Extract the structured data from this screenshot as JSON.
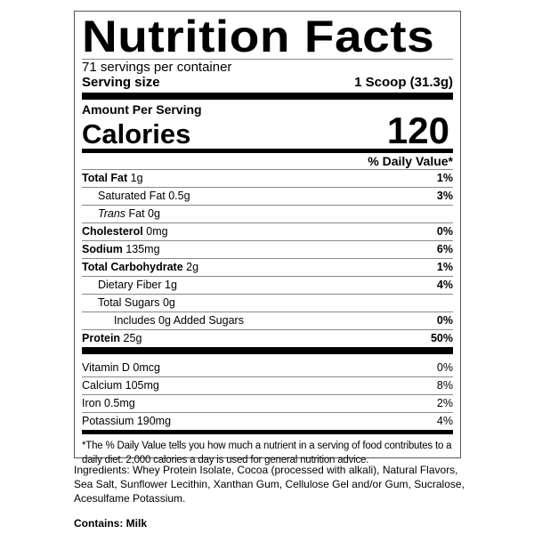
{
  "title": "Nutrition Facts",
  "servings_per_container": "71 servings per container",
  "serving_size": {
    "label": "Serving size",
    "value": "1 Scoop (31.3g)"
  },
  "amount_per_serving": "Amount Per Serving",
  "calories": {
    "label": "Calories",
    "value": "120"
  },
  "daily_value_header": "% Daily Value*",
  "nutrients": [
    {
      "label": "Total Fat",
      "amount": "1g",
      "dv": "1%"
    },
    {
      "label": "Saturated Fat 0.5g",
      "amount": "",
      "dv": "3%"
    },
    {
      "label": "Trans",
      "amount": "Fat 0g",
      "dv": ""
    },
    {
      "label": "Cholesterol",
      "amount": "0mg",
      "dv": "0%"
    },
    {
      "label": "Sodium",
      "amount": "135mg",
      "dv": "6%"
    },
    {
      "label": "Total Carbohydrate",
      "amount": "2g",
      "dv": "1%"
    },
    {
      "label": "Dietary Fiber 1g",
      "amount": "",
      "dv": "4%"
    },
    {
      "label": "Total Sugars 0g",
      "amount": "",
      "dv": ""
    },
    {
      "label": "Includes 0g Added Sugars",
      "amount": "",
      "dv": "0%"
    },
    {
      "label": "Protein",
      "amount": "25g",
      "dv": "50%"
    }
  ],
  "vitamins": [
    {
      "label": "Vitamin D 0mcg",
      "dv": "0%"
    },
    {
      "label": "Calcium 105mg",
      "dv": "8%"
    },
    {
      "label": "Iron 0.5mg",
      "dv": "2%"
    },
    {
      "label": "Potassium 190mg",
      "dv": "4%"
    }
  ],
  "footnote": "*The % Daily Value tells you how much a nutrient in a serving of food contributes to a daily diet. 2,000 calories a day is used for general nutrition advice.",
  "ingredients": "Ingredients: Whey Protein Isolate, Cocoa (processed with alkali), Natural Flavors, Sea Salt, Sunflower Lecithin, Xanthan Gum, Cellulose Gel and/or Gum, Sucralose, Acesulfame Potassium.",
  "contains": "Contains: Milk"
}
